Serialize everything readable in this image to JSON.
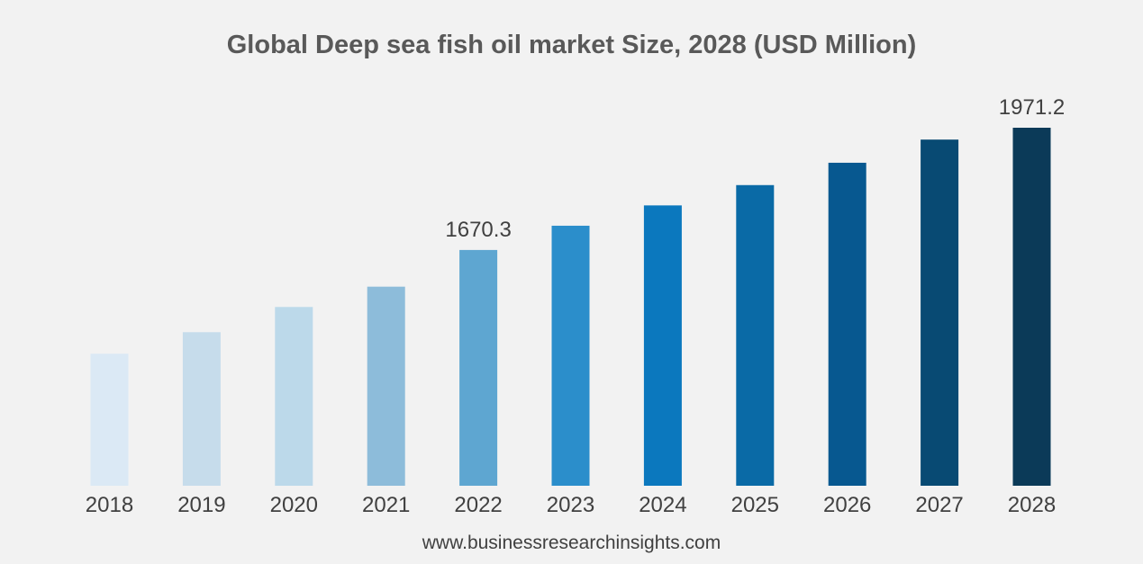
{
  "chart_data": {
    "type": "bar",
    "title": "Global Deep sea fish oil market Size, 2028 (USD Million)",
    "xlabel": "",
    "ylabel": "",
    "categories": [
      "2018",
      "2019",
      "2020",
      "2021",
      "2022",
      "2023",
      "2024",
      "2025",
      "2026",
      "2027",
      "2028"
    ],
    "values": [
      1415,
      1468,
      1530,
      1580,
      1670.3,
      1730,
      1780,
      1830,
      1885,
      1942,
      1971.2
    ],
    "data_labels": [
      {
        "category": "2022",
        "text": "1670.3"
      },
      {
        "category": "2028",
        "text": "1971.2"
      }
    ],
    "ylim": [
      1090,
      2000
    ],
    "grid": false,
    "legend": "none",
    "colors": [
      "#dbe9f5",
      "#c6dceb",
      "#bcd9ea",
      "#8dbcda",
      "#5ea6d1",
      "#2b8ecb",
      "#0b78be",
      "#0a6aa6",
      "#075890",
      "#084a73",
      "#0b3a58"
    ]
  },
  "footer": {
    "source": "www.businessresearchinsights.com"
  }
}
